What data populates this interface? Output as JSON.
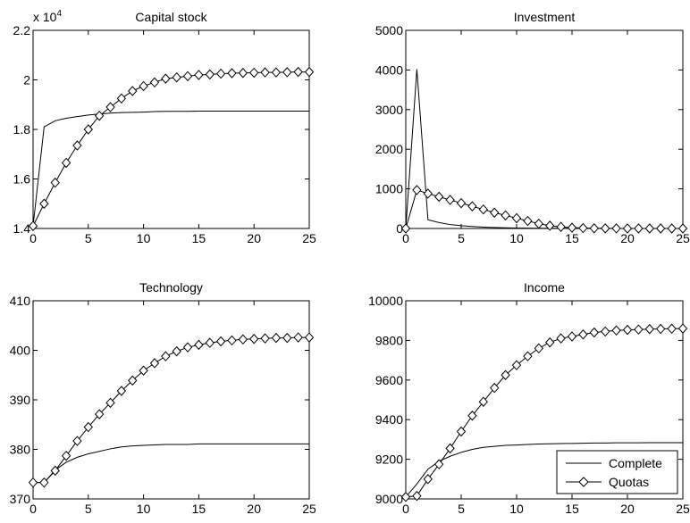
{
  "chart_data": [
    {
      "type": "line",
      "title": "Capital stock",
      "exponent_label": "x 10",
      "exponent_power": "4",
      "xlim": [
        0,
        25
      ],
      "ylim": [
        1.4,
        2.2
      ],
      "xticks": [
        0,
        5,
        10,
        15,
        20,
        25
      ],
      "xtick_labels": [
        "0",
        "5",
        "10",
        "15",
        "20",
        "25"
      ],
      "yticks": [
        1.4,
        1.6,
        1.8,
        2.0,
        2.2
      ],
      "ytick_labels": [
        "1.4",
        "1.6",
        "1.8",
        "2",
        "2.2"
      ],
      "grid": false,
      "series": [
        {
          "name": "Complete",
          "marker": "none",
          "x": [
            0,
            1,
            2,
            3,
            4,
            5,
            6,
            7,
            8,
            9,
            10,
            11,
            12,
            13,
            14,
            15,
            16,
            17,
            18,
            19,
            20,
            21,
            22,
            23,
            24,
            25
          ],
          "y": [
            1.41,
            1.81,
            1.835,
            1.845,
            1.852,
            1.858,
            1.862,
            1.866,
            1.868,
            1.869,
            1.87,
            1.872,
            1.873,
            1.873,
            1.873,
            1.874,
            1.874,
            1.874,
            1.874,
            1.874,
            1.874,
            1.874,
            1.874,
            1.874,
            1.874,
            1.874
          ]
        },
        {
          "name": "Quotas",
          "marker": "diamond",
          "x": [
            0,
            1,
            2,
            3,
            4,
            5,
            6,
            7,
            8,
            9,
            10,
            11,
            12,
            13,
            14,
            15,
            16,
            17,
            18,
            19,
            20,
            21,
            22,
            23,
            24,
            25
          ],
          "y": [
            1.41,
            1.5,
            1.585,
            1.665,
            1.735,
            1.8,
            1.855,
            1.89,
            1.925,
            1.955,
            1.975,
            1.99,
            2.005,
            2.01,
            2.015,
            2.02,
            2.022,
            2.025,
            2.027,
            2.028,
            2.029,
            2.03,
            2.03,
            2.031,
            2.032,
            2.032
          ]
        }
      ]
    },
    {
      "type": "line",
      "title": "Investment",
      "xlim": [
        0,
        25
      ],
      "ylim": [
        0,
        5000
      ],
      "xticks": [
        0,
        5,
        10,
        15,
        20,
        25
      ],
      "xtick_labels": [
        "0",
        "5",
        "10",
        "15",
        "20",
        "25"
      ],
      "yticks": [
        0,
        1000,
        2000,
        3000,
        4000,
        5000
      ],
      "ytick_labels": [
        "0",
        "1000",
        "2000",
        "3000",
        "4000",
        "5000"
      ],
      "grid": false,
      "series": [
        {
          "name": "Complete",
          "marker": "none",
          "x": [
            0,
            1,
            2,
            3,
            4,
            5,
            6,
            7,
            8,
            9,
            10,
            11,
            12,
            13,
            14,
            15,
            16,
            17,
            18,
            19,
            20,
            21,
            22,
            23,
            24,
            25
          ],
          "y": [
            0,
            4020,
            220,
            150,
            100,
            70,
            50,
            35,
            25,
            18,
            12,
            9,
            7,
            5,
            4,
            3,
            2,
            2,
            1,
            1,
            1,
            1,
            0,
            0,
            0,
            0
          ]
        },
        {
          "name": "Quotas",
          "marker": "diamond",
          "x": [
            0,
            1,
            2,
            3,
            4,
            5,
            6,
            7,
            8,
            9,
            10,
            11,
            12,
            13,
            14,
            15,
            16,
            17,
            18,
            19,
            20,
            21,
            22,
            23,
            24,
            25
          ],
          "y": [
            0,
            970,
            880,
            800,
            720,
            640,
            560,
            480,
            400,
            330,
            260,
            190,
            120,
            70,
            40,
            20,
            10,
            5,
            3,
            2,
            1,
            1,
            0,
            0,
            0,
            0
          ]
        }
      ]
    },
    {
      "type": "line",
      "title": "Technology",
      "xlim": [
        0,
        25
      ],
      "ylim": [
        370,
        410
      ],
      "xticks": [
        0,
        5,
        10,
        15,
        20,
        25
      ],
      "xtick_labels": [
        "0",
        "5",
        "10",
        "15",
        "20",
        "25"
      ],
      "yticks": [
        370,
        380,
        390,
        400,
        410
      ],
      "ytick_labels": [
        "370",
        "380",
        "390",
        "400",
        "410"
      ],
      "grid": false,
      "series": [
        {
          "name": "Complete",
          "marker": "none",
          "x": [
            0,
            1,
            2,
            3,
            4,
            5,
            6,
            7,
            8,
            9,
            10,
            11,
            12,
            13,
            14,
            15,
            16,
            17,
            18,
            19,
            20,
            21,
            22,
            23,
            24,
            25
          ],
          "y": [
            373.3,
            373.3,
            375.8,
            377.4,
            378.4,
            379.1,
            379.6,
            380.1,
            380.5,
            380.7,
            380.8,
            380.9,
            381.0,
            381.0,
            381.0,
            381.1,
            381.1,
            381.1,
            381.1,
            381.1,
            381.1,
            381.1,
            381.1,
            381.1,
            381.1,
            381.1
          ]
        },
        {
          "name": "Quotas",
          "marker": "diamond",
          "x": [
            0,
            1,
            2,
            3,
            4,
            5,
            6,
            7,
            8,
            9,
            10,
            11,
            12,
            13,
            14,
            15,
            16,
            17,
            18,
            19,
            20,
            21,
            22,
            23,
            24,
            25
          ],
          "y": [
            373.3,
            373.3,
            375.7,
            378.7,
            381.7,
            384.5,
            387.1,
            389.4,
            391.8,
            393.9,
            395.9,
            397.4,
            398.8,
            399.8,
            400.6,
            401.1,
            401.5,
            401.8,
            402.0,
            402.2,
            402.3,
            402.4,
            402.5,
            402.5,
            402.6,
            402.6
          ]
        }
      ]
    },
    {
      "type": "line",
      "title": "Income",
      "xlim": [
        0,
        25
      ],
      "ylim": [
        9000,
        10000
      ],
      "xticks": [
        0,
        5,
        10,
        15,
        20,
        25
      ],
      "xtick_labels": [
        "0",
        "5",
        "10",
        "15",
        "20",
        "25"
      ],
      "yticks": [
        9000,
        9200,
        9400,
        9600,
        9800,
        10000
      ],
      "ytick_labels": [
        "9000",
        "9200",
        "9400",
        "9600",
        "9800",
        "10000"
      ],
      "grid": false,
      "legend": {
        "position": "bottom-right",
        "entries": [
          "Complete",
          "Quotas"
        ]
      },
      "series": [
        {
          "name": "Complete",
          "marker": "none",
          "x": [
            0,
            1,
            2,
            3,
            4,
            5,
            6,
            7,
            8,
            9,
            10,
            11,
            12,
            13,
            14,
            15,
            16,
            17,
            18,
            19,
            20,
            21,
            22,
            23,
            24,
            25
          ],
          "y": [
            9010,
            9075,
            9150,
            9190,
            9215,
            9235,
            9250,
            9260,
            9265,
            9270,
            9272,
            9275,
            9277,
            9278,
            9279,
            9280,
            9281,
            9282,
            9282,
            9283,
            9283,
            9283,
            9284,
            9284,
            9284,
            9284
          ]
        },
        {
          "name": "Quotas",
          "marker": "diamond",
          "x": [
            0,
            1,
            2,
            3,
            4,
            5,
            6,
            7,
            8,
            9,
            10,
            11,
            12,
            13,
            14,
            15,
            16,
            17,
            18,
            19,
            20,
            21,
            22,
            23,
            24,
            25
          ],
          "y": [
            9010,
            9015,
            9100,
            9175,
            9255,
            9340,
            9420,
            9490,
            9560,
            9625,
            9675,
            9720,
            9760,
            9790,
            9810,
            9820,
            9830,
            9840,
            9845,
            9850,
            9853,
            9855,
            9857,
            9858,
            9859,
            9860
          ]
        }
      ]
    }
  ]
}
